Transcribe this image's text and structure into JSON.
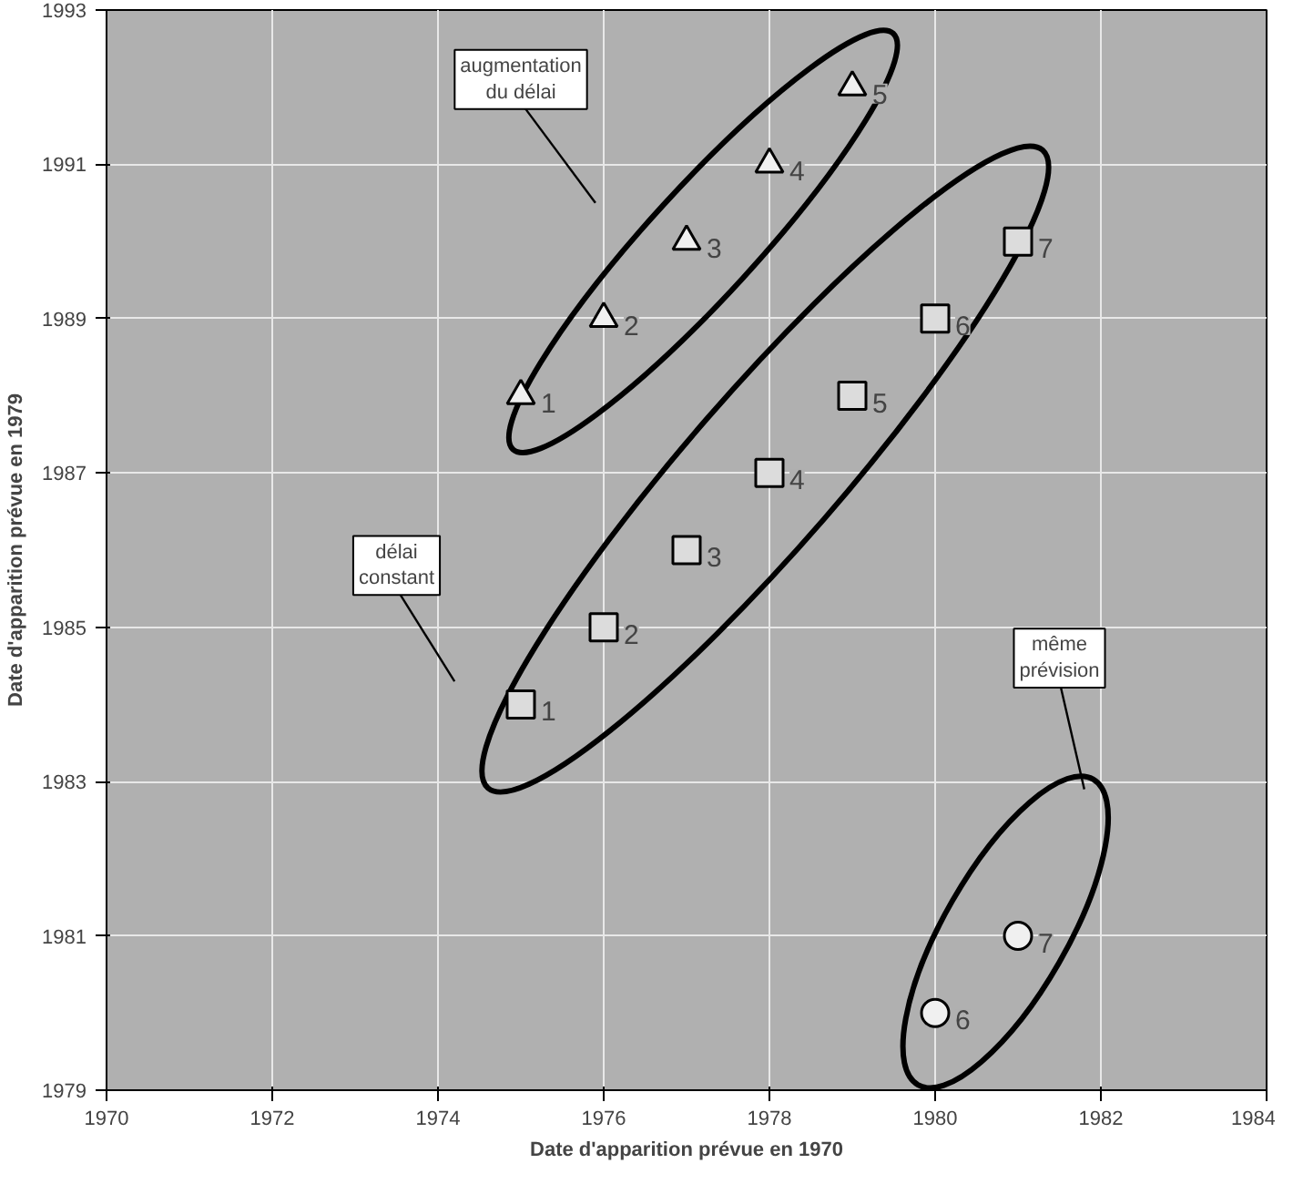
{
  "chart_data": {
    "type": "scatter",
    "xlabel": "Date d'apparition prévue en 1970",
    "ylabel": "Date d'apparition prévue en 1979",
    "xlim": [
      1970,
      1984
    ],
    "xticks": [
      1970,
      1972,
      1974,
      1976,
      1978,
      1980,
      1982,
      1984
    ],
    "ylim": [
      1979,
      1993
    ],
    "yticks": [
      1979,
      1981,
      1983,
      1985,
      1987,
      1989,
      1991,
      1993
    ],
    "grid": true,
    "series": [
      {
        "color": "#f0f0f0",
        "marker": "triangle",
        "x": [
          1975,
          1976,
          1977,
          1978,
          1979
        ],
        "values": [
          1988,
          1989,
          1990,
          1991,
          1992
        ]
      },
      {
        "color": "#dcdcdc",
        "marker": "square",
        "x": [
          1975,
          1976,
          1977,
          1978,
          1979,
          1980,
          1981
        ],
        "values": [
          1984,
          1985,
          1986,
          1987,
          1988,
          1989,
          1990
        ]
      },
      {
        "color": "#f0f0f0",
        "marker": "circle",
        "x": [
          1980,
          1981
        ],
        "values": [
          1980,
          1981
        ]
      }
    ],
    "annotations": [
      "augmentation\ndu délai",
      "délai\nconstant",
      "même\nprévision",
      {
        "text": "1",
        "x": 1975,
        "y": 1988
      },
      {
        "text": "2",
        "x": 1976,
        "y": 1989
      },
      {
        "text": "3",
        "x": 1977,
        "y": 1990
      },
      {
        "text": "4",
        "x": 1978,
        "y": 1991
      },
      {
        "text": "5",
        "x": 1979,
        "y": 1992
      },
      {
        "text": "1",
        "x": 1975,
        "y": 1984
      },
      {
        "text": "2",
        "x": 1976,
        "y": 1985
      },
      {
        "text": "3",
        "x": 1977,
        "y": 1986
      },
      {
        "text": "4",
        "x": 1978,
        "y": 1987
      },
      {
        "text": "5",
        "x": 1979,
        "y": 1988
      },
      {
        "text": "6",
        "x": 1980,
        "y": 1989
      },
      {
        "text": "7",
        "x": 1981,
        "y": 1990
      },
      {
        "text": "6",
        "x": 1980,
        "y": 1980
      },
      {
        "text": "7",
        "x": 1981,
        "y": 1981
      }
    ]
  }
}
